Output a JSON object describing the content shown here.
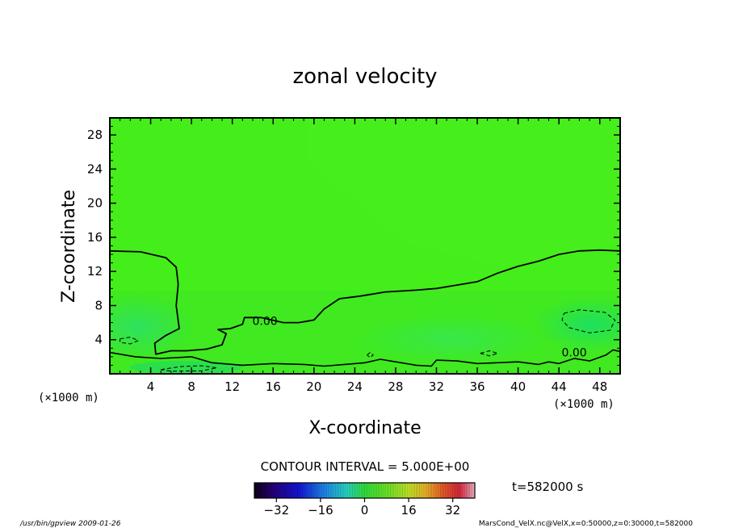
{
  "chart_data": {
    "type": "heatmap",
    "title": "zonal velocity",
    "xlabel": "X-coordinate",
    "ylabel": "Z-coordinate",
    "x_unit_left": "(×1000 m)",
    "x_unit_right": "(×1000 m)",
    "z_unit": "(×1000 m)",
    "xlim": [
      0,
      50
    ],
    "ylim": [
      0,
      30
    ],
    "x_ticks": [
      4,
      8,
      12,
      16,
      20,
      24,
      28,
      32,
      36,
      40,
      44,
      48
    ],
    "y_ticks": [
      4,
      8,
      12,
      16,
      20,
      24,
      28
    ],
    "contour_interval_text": "CONTOUR INTERVAL = 5.000E+00",
    "contour_labels": [
      {
        "text": "0.00",
        "x": 15.2,
        "z": 6.2
      },
      {
        "text": "0.00",
        "x": 45.5,
        "z": 2.5
      }
    ],
    "zero_contour_upper": [
      [
        0,
        14.4
      ],
      [
        3,
        14.3
      ],
      [
        5.5,
        13.6
      ],
      [
        6.5,
        12.5
      ],
      [
        6.7,
        10.5
      ],
      [
        6.5,
        8
      ],
      [
        6.8,
        5.3
      ],
      [
        5.5,
        4.5
      ],
      [
        4.4,
        3.6
      ],
      [
        4.5,
        2.3
      ],
      [
        6,
        2.7
      ],
      [
        7.5,
        2.7
      ],
      [
        9.5,
        2.9
      ],
      [
        11,
        3.4
      ],
      [
        11.4,
        4.7
      ],
      [
        10.6,
        5.2
      ],
      [
        11.8,
        5.3
      ],
      [
        13,
        5.8
      ],
      [
        13.2,
        6.6
      ],
      [
        14.8,
        6.6
      ],
      [
        17,
        6.0
      ],
      [
        18.5,
        6.0
      ],
      [
        20,
        6.3
      ],
      [
        21,
        7.6
      ],
      [
        22.5,
        8.8
      ],
      [
        24.5,
        9.1
      ],
      [
        27,
        9.6
      ],
      [
        30,
        9.8
      ],
      [
        32,
        10.0
      ],
      [
        34,
        10.4
      ],
      [
        36,
        10.8
      ],
      [
        38,
        11.8
      ],
      [
        40,
        12.6
      ],
      [
        42,
        13.2
      ],
      [
        44,
        14.0
      ],
      [
        46,
        14.4
      ],
      [
        48,
        14.5
      ],
      [
        50,
        14.4
      ]
    ],
    "zero_contour_lower": [
      [
        0,
        2.5
      ],
      [
        2.5,
        2.0
      ],
      [
        5,
        1.8
      ],
      [
        8,
        2.0
      ],
      [
        10,
        1.3
      ],
      [
        13,
        1.0
      ],
      [
        16,
        1.2
      ],
      [
        19,
        1.1
      ],
      [
        21,
        0.9
      ],
      [
        23,
        1.1
      ],
      [
        25,
        1.3
      ],
      [
        26.5,
        1.7
      ],
      [
        28,
        1.4
      ],
      [
        30,
        1.0
      ],
      [
        31.5,
        0.9
      ],
      [
        32,
        1.6
      ],
      [
        34,
        1.5
      ],
      [
        36,
        1.2
      ],
      [
        38,
        1.3
      ],
      [
        40,
        1.4
      ],
      [
        42,
        1.1
      ],
      [
        43,
        1.4
      ],
      [
        44,
        1.2
      ],
      [
        45.5,
        1.8
      ],
      [
        47,
        1.5
      ],
      [
        48.6,
        2.2
      ],
      [
        49.3,
        2.8
      ],
      [
        50,
        2.6
      ]
    ],
    "negative_contours": [
      [
        [
          44.5,
          7.1
        ],
        [
          46,
          7.5
        ],
        [
          48.5,
          7.2
        ],
        [
          49.5,
          6.3
        ],
        [
          49,
          5.1
        ],
        [
          47,
          4.8
        ],
        [
          45,
          5.4
        ],
        [
          44.3,
          6.3
        ],
        [
          44.5,
          7.1
        ]
      ],
      [
        [
          1,
          4.1
        ],
        [
          2,
          4.3
        ],
        [
          2.8,
          3.9
        ],
        [
          2,
          3.5
        ],
        [
          1,
          3.7
        ],
        [
          1,
          4.1
        ]
      ],
      [
        [
          36.3,
          2.4
        ],
        [
          37.2,
          2.7
        ],
        [
          38,
          2.4
        ],
        [
          37.2,
          2.1
        ],
        [
          36.3,
          2.4
        ]
      ],
      [
        [
          25.2,
          2.2
        ],
        [
          25.5,
          2.5
        ],
        [
          25.8,
          2.2
        ],
        [
          25.5,
          1.9
        ],
        [
          25.2,
          2.2
        ]
      ],
      [
        [
          5,
          0.5
        ],
        [
          7,
          0.85
        ],
        [
          9,
          0.95
        ],
        [
          10.5,
          0.7
        ],
        [
          9,
          0.35
        ],
        [
          6,
          0.3
        ],
        [
          5,
          0.5
        ]
      ]
    ],
    "colorbar": {
      "min": -40,
      "max": 40,
      "step": 2.5,
      "ticks": [
        -32,
        -16,
        0,
        16,
        32
      ]
    },
    "field_base_color": "#44ee1a"
  },
  "time_label": "t=582000 s",
  "footer": {
    "left": "/usr/bin/gpview  2009-01-26",
    "right": "MarsCond_VelX.nc@VelX,x=0:50000,z=0:30000,t=582000"
  }
}
